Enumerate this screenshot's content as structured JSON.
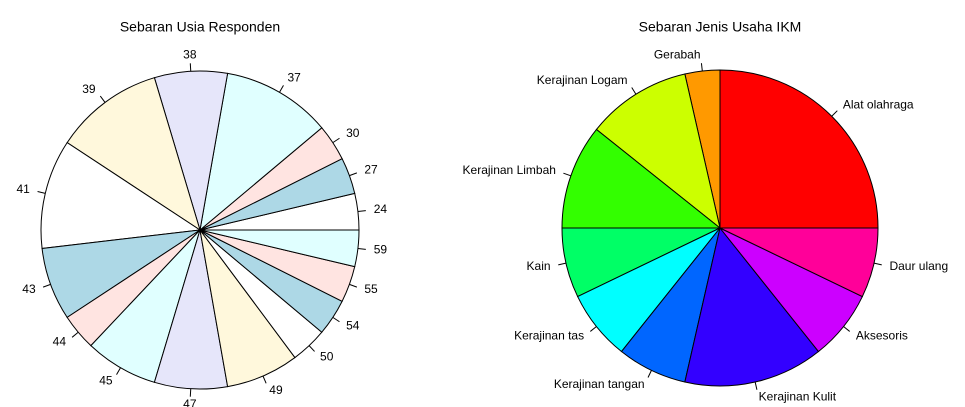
{
  "chart_data": [
    {
      "type": "pie",
      "title": "Sebaran Usia Responden",
      "categories": [
        "24",
        "27",
        "30",
        "37",
        "38",
        "39",
        "41",
        "43",
        "44",
        "45",
        "47",
        "49",
        "50",
        "54",
        "55",
        "59"
      ],
      "values": [
        1,
        1,
        1,
        3,
        2,
        3,
        3,
        2,
        1,
        2,
        2,
        2,
        1,
        1,
        1,
        1
      ],
      "colors": [
        "#ffffff",
        "#add8e6",
        "#ffe4e1",
        "#e0ffff",
        "#e6e6fa",
        "#fff8dc",
        "#ffffff",
        "#add8e6",
        "#ffe4e1",
        "#e0ffff",
        "#e6e6fa",
        "#fff8dc",
        "#ffffff",
        "#add8e6",
        "#ffe4e1",
        "#e0ffff"
      ]
    },
    {
      "type": "pie",
      "title": "Sebaran Jenis Usaha IKM",
      "categories": [
        "Alat olahraga",
        "Gerabah",
        "Kerajinan Logam",
        "Kerajinan Limbah",
        "Kain",
        "Kerajinan tas",
        "Kerajinan tangan",
        "Kerajinan Kulit",
        "Aksesoris",
        "Daur ulang"
      ],
      "values": [
        7,
        1,
        3,
        3,
        2,
        2,
        2,
        4,
        2,
        2
      ],
      "colors": [
        "#ff0000",
        "#ff9900",
        "#ccff00",
        "#33ff00",
        "#00ff66",
        "#00ffff",
        "#0066ff",
        "#3300ff",
        "#cc00ff",
        "#ff0099"
      ]
    }
  ]
}
